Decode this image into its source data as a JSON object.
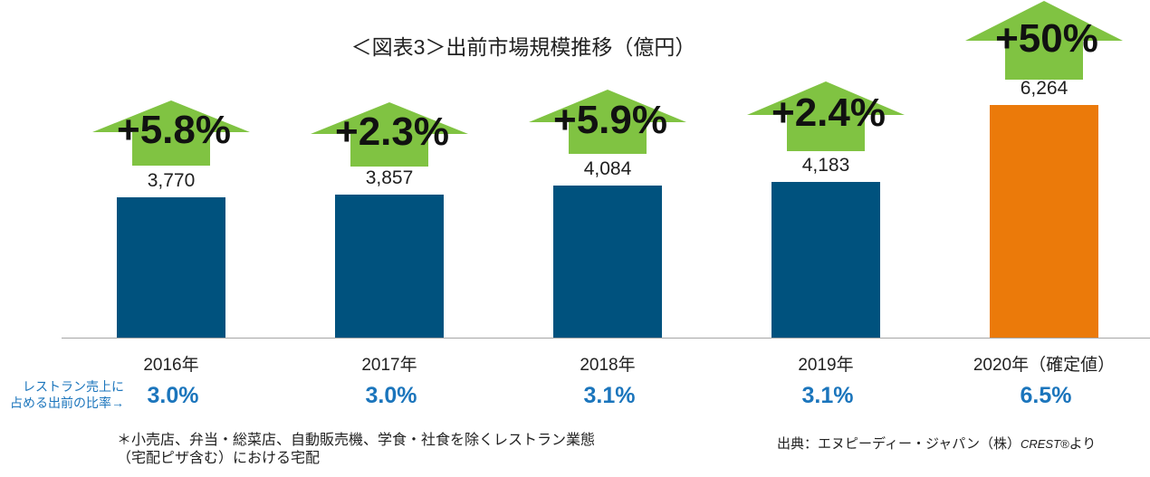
{
  "chart_data": {
    "type": "bar",
    "title": "＜図表3＞出前市場規模推移（億円）",
    "categories": [
      "2016年",
      "2017年",
      "2018年",
      "2019年",
      "2020年（確定値）"
    ],
    "values": [
      3770,
      3857,
      4084,
      4183,
      6264
    ],
    "data_labels": [
      "3,770",
      "3,857",
      "4,084",
      "4,183",
      "6,264"
    ],
    "growth_labels": [
      "+5.8%",
      "+2.3%",
      "+5.9%",
      "+2.4%",
      "+50%"
    ],
    "share_labels": [
      "3.0%",
      "3.0%",
      "3.1%",
      "3.1%",
      "6.5%"
    ],
    "bar_colors": [
      "#00527E",
      "#00527E",
      "#00527E",
      "#00527E",
      "#EB7A0A"
    ],
    "arrow_color": "#80C342",
    "share_color": "#1B75BC",
    "xlabel": "",
    "ylabel": "",
    "grid": false
  },
  "share_note": {
    "line1": "レストラン売上に",
    "line2": "占める出前の比率→"
  },
  "footnote": {
    "line1": "＊小売店、弁当・総菜店、自動販売機、学食・社食を除くレストラン業態",
    "line2": "（宅配ピザ含む）における宅配"
  },
  "source": {
    "prefix": "出典：エヌピーディー・ジャパン（株）",
    "brand": "CREST®",
    "suffix": "より"
  }
}
